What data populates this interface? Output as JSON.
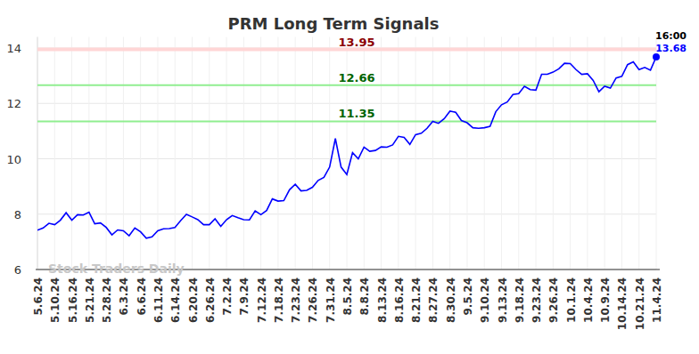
{
  "chart_data": {
    "type": "line",
    "title": "PRM Long Term Signals",
    "watermark": "Stock Traders Daily",
    "annotation": "16:00",
    "categories": [
      "5.6.24",
      null,
      null,
      "5.10.24",
      null,
      null,
      "5.16.24",
      null,
      null,
      "5.21.24",
      null,
      null,
      "5.28.24",
      null,
      null,
      "6.3.24",
      null,
      null,
      "6.6.24",
      null,
      null,
      "6.11.24",
      null,
      null,
      "6.14.24",
      null,
      null,
      "6.20.24",
      null,
      null,
      "6.26.24",
      null,
      null,
      "7.2.24",
      null,
      null,
      "7.9.24",
      null,
      null,
      "7.12.24",
      null,
      null,
      "7.18.24",
      null,
      null,
      "7.23.24",
      null,
      null,
      "7.26.24",
      null,
      null,
      "7.31.24",
      null,
      null,
      "8.5.24",
      null,
      null,
      "8.8.24",
      null,
      null,
      "8.13.24",
      null,
      null,
      "8.16.24",
      null,
      null,
      "8.21.24",
      null,
      null,
      "8.27.24",
      null,
      null,
      "8.30.24",
      null,
      null,
      "9.5.24",
      null,
      null,
      "9.10.24",
      null,
      null,
      "9.13.24",
      null,
      null,
      "9.18.24",
      null,
      null,
      "9.23.24",
      null,
      null,
      "9.26.24",
      null,
      null,
      "10.1.24",
      null,
      null,
      "10.4.24",
      null,
      null,
      "10.9.24",
      null,
      null,
      "10.14.24",
      null,
      null,
      "10.21.24",
      null,
      null,
      "11.4.24"
    ],
    "values": [
      7.42,
      7.5,
      7.67,
      7.62,
      7.78,
      8.05,
      7.78,
      7.98,
      7.97,
      8.07,
      7.65,
      7.68,
      7.52,
      7.25,
      7.43,
      7.4,
      7.22,
      7.5,
      7.36,
      7.13,
      7.18,
      7.4,
      7.47,
      7.48,
      7.52,
      7.77,
      7.99,
      7.9,
      7.8,
      7.62,
      7.62,
      7.83,
      7.56,
      7.8,
      7.95,
      7.87,
      7.8,
      7.79,
      8.12,
      7.98,
      8.13,
      8.55,
      8.47,
      8.49,
      8.88,
      9.08,
      8.84,
      8.86,
      8.97,
      9.22,
      9.33,
      9.7,
      10.73,
      9.7,
      9.43,
      10.22,
      10.0,
      10.42,
      10.27,
      10.3,
      10.43,
      10.42,
      10.5,
      10.81,
      10.77,
      10.52,
      10.87,
      10.92,
      11.1,
      11.35,
      11.28,
      11.45,
      11.72,
      11.68,
      11.38,
      11.3,
      11.12,
      11.1,
      11.12,
      11.17,
      11.7,
      11.95,
      12.05,
      12.32,
      12.35,
      12.62,
      12.5,
      12.48,
      13.05,
      13.05,
      13.13,
      13.25,
      13.45,
      13.44,
      13.22,
      13.05,
      13.07,
      12.83,
      12.42,
      12.62,
      12.55,
      12.92,
      12.98,
      13.4,
      13.5,
      13.22,
      13.3,
      13.2,
      13.68
    ],
    "color": "#0000ff",
    "ylim": [
      6,
      14.4
    ],
    "yticks": [
      6,
      8,
      10,
      12,
      14
    ],
    "grid": true,
    "reference_lines": [
      {
        "value": 13.95,
        "label": "13.95",
        "color": "#8b0000"
      },
      {
        "value": 12.66,
        "label": "12.66",
        "color": "#006400"
      },
      {
        "value": 11.35,
        "label": "11.35",
        "color": "#006400"
      }
    ]
  }
}
